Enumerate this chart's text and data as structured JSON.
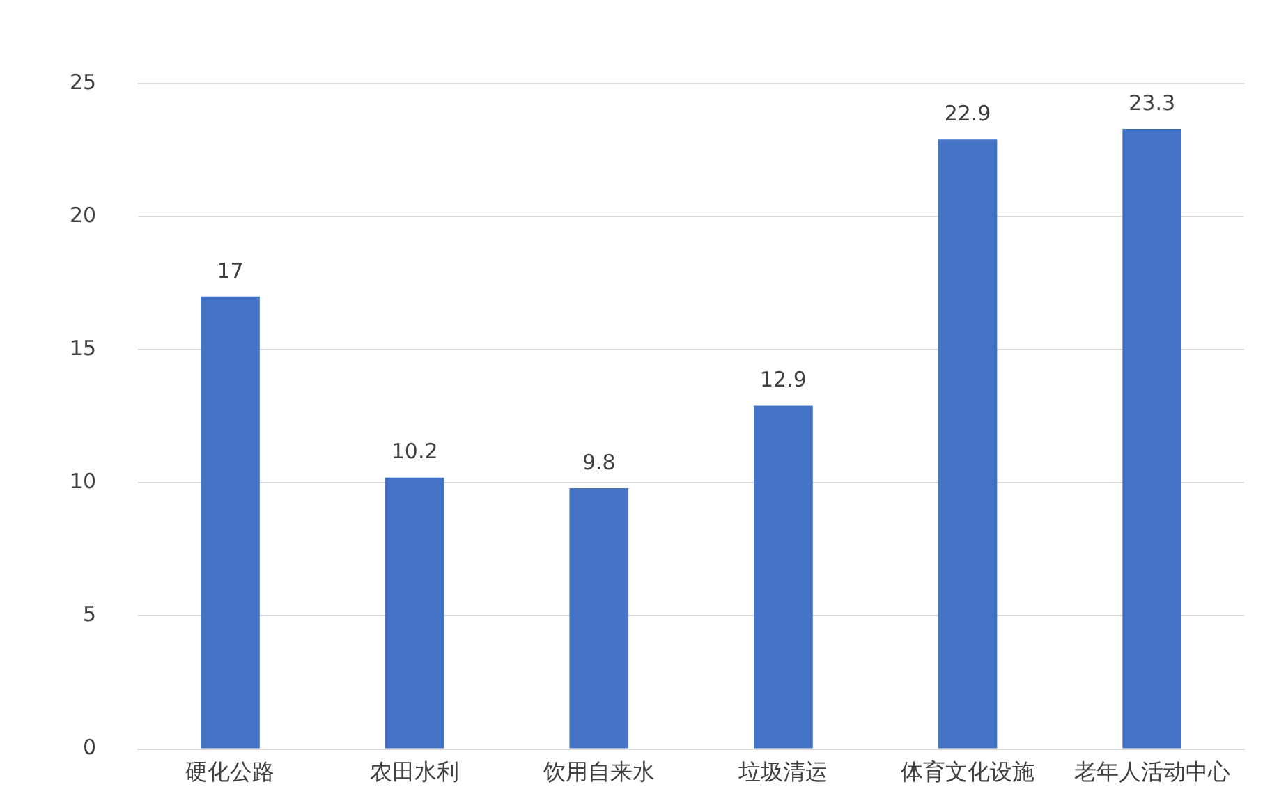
{
  "chart_data": {
    "type": "bar",
    "categories": [
      "硬化公路",
      "农田水利",
      "饮用自来水",
      "垃圾清运",
      "体育文化设施",
      "老年人活动中心"
    ],
    "values": [
      17,
      10.2,
      9.8,
      12.9,
      22.9,
      23.3
    ],
    "color": "#4472c4",
    "ylim": [
      0,
      25
    ],
    "yticks": [
      0,
      5,
      10,
      15,
      20,
      25
    ],
    "grid": "y",
    "legend": false,
    "data_labels": true
  }
}
